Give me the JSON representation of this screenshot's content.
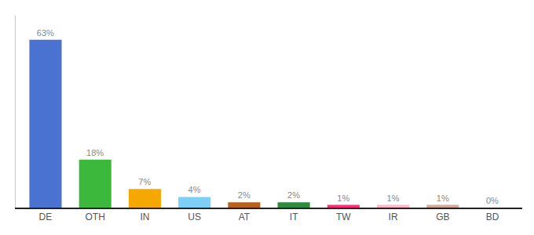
{
  "chart_data": {
    "type": "bar",
    "categories": [
      "DE",
      "OTH",
      "IN",
      "US",
      "AT",
      "IT",
      "TW",
      "IR",
      "GB",
      "BD"
    ],
    "values": [
      63,
      18,
      7,
      4,
      2,
      2,
      1,
      1,
      1,
      0
    ],
    "value_labels": [
      "63%",
      "18%",
      "7%",
      "4%",
      "2%",
      "2%",
      "1%",
      "1%",
      "1%",
      "0%"
    ],
    "colors": [
      "#4a72d1",
      "#3cb83c",
      "#f5a800",
      "#7ecff5",
      "#b8601c",
      "#2e8b3e",
      "#ff2d78",
      "#ffb6c8",
      "#d2a898",
      "#cccccc"
    ],
    "ylim": [
      0,
      72
    ],
    "data_labels": true,
    "tick_labels": "x",
    "grid": false
  }
}
